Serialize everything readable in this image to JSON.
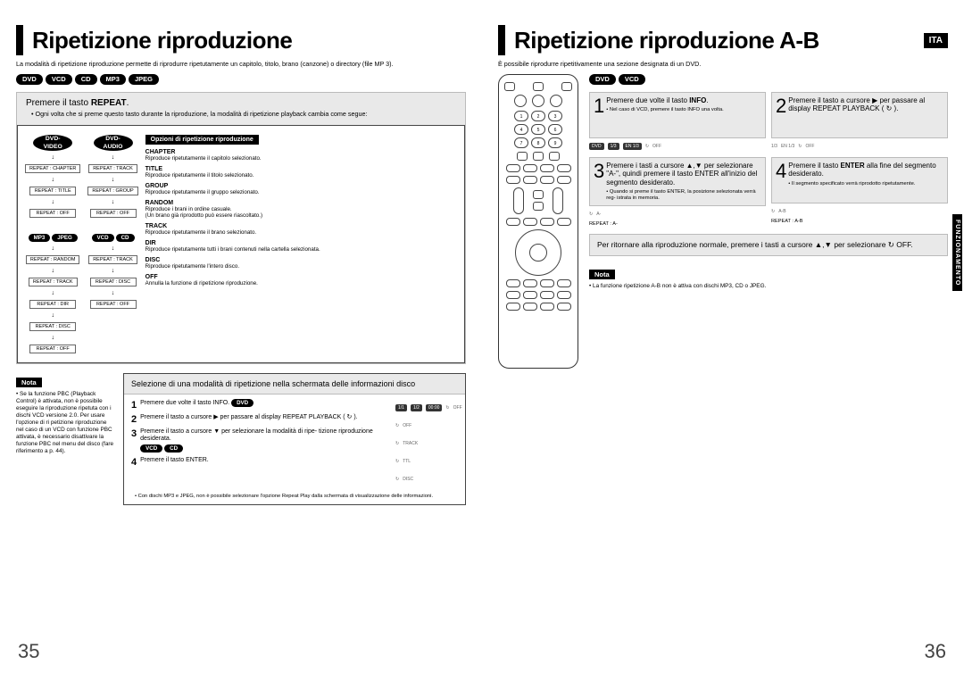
{
  "left": {
    "title": "Ripetizione riproduzione",
    "subtitle": "La modalità di ripetizione riproduzione permette di riprodurre ripetutamente un capitolo, titolo, brano (canzone) o directory (file MP 3).",
    "formats": [
      "DVD",
      "VCD",
      "CD",
      "MP3",
      "JPEG"
    ],
    "grayHeader": "Premere il tasto REPEAT.",
    "grayNote": "• Ogni volta che si preme questo tasto durante la riproduzione, la modalità di ripetizione playback cambia come segue:",
    "cols": {
      "dvdVideo": {
        "label": "DVD-\nVIDEO",
        "nodes": [
          "REPEAT : CHAPTER",
          "REPEAT : TITLE",
          "REPEAT : OFF"
        ]
      },
      "dvdAudio": {
        "label": "DVD-\nAUDIO",
        "nodes": [
          "REPEAT : TRACK",
          "REPEAT : GROUP",
          "REPEAT : OFF"
        ]
      },
      "mp3jpeg": {
        "labels": [
          "MP3",
          "JPEG"
        ],
        "nodes": [
          "REPEAT : RANDOM",
          "REPEAT : TRACK",
          "REPEAT : DIR",
          "REPEAT : DISC",
          "REPEAT : OFF"
        ]
      },
      "vcdcd": {
        "labels": [
          "VCD",
          "CD"
        ],
        "nodes": [
          "REPEAT : TRACK",
          "REPEAT : DISC",
          "REPEAT : OFF"
        ]
      }
    },
    "optHeader": "Opzioni di ripetizione riproduzione",
    "options": [
      {
        "nm": "CHAPTER",
        "ds": "Riproduce ripetutamente il capitolo selezionato."
      },
      {
        "nm": "TITLE",
        "ds": "Riproduce ripetutamente il titolo selezionato."
      },
      {
        "nm": "GROUP",
        "ds": "Riproduce ripetutamente il gruppo selezionato."
      },
      {
        "nm": "RANDOM",
        "ds": "Riproduce i brani in ordine casuale.\n(Un brano già riprodotto può essere riascoltato.)"
      },
      {
        "nm": "TRACK",
        "ds": "Riproduce ripetutamente il brano selezionato."
      },
      {
        "nm": "DIR",
        "ds": "Riproduce ripetutamente tutti i brani contenuti nella cartella selezionata."
      },
      {
        "nm": "DISC",
        "ds": "Riproduce ripetutamente l'intero disco."
      },
      {
        "nm": "OFF",
        "ds": "Annulla la funzione di ripetizione riproduzione."
      }
    ],
    "nota": "Nota",
    "notaText": "• Se la funzione PBC (Playback Control) è attivata, non è possibile eseguire la riproduzione ripetuta con i dischi VCD versione 2.0. Per usare l'opzione di ri petizione riproduzione nel caso di un VCD con funzione PBC attivata, è necessario disattivare la funzione PBC nel menu del disco (fare riferimento a p. 44).",
    "infoHeader": "Selezione di una modalità di ripetizione nella schermata delle informazioni disco",
    "steps": [
      {
        "n": "1",
        "t": "Premere due volte il tasto INFO."
      },
      {
        "n": "2",
        "t": "Premere il tasto a cursore ▶ per passare al display REPEAT PLAYBACK ( ↻ )."
      },
      {
        "n": "3",
        "t": "Premere il tasto a cursore ▼ per selezionare la modalità di ripe- tizione riproduzione desiderata."
      },
      {
        "n": "4",
        "t": "Premere il tasto ENTER."
      }
    ],
    "dvdBadge": "DVD",
    "vcdcdBadges": [
      "VCD",
      "CD"
    ],
    "stripLabels": [
      "1/1",
      "1/2",
      "00:00",
      "OFF",
      "TRACK",
      "DISC",
      "TTL"
    ],
    "tinyNote": "• Con dischi MP3 e JPEG, non è possibile selezionare l'opzione Repeat Play dalla schermata di visualizzazione delle informazioni.",
    "pageNum": "35"
  },
  "right": {
    "title": "Ripetizione riproduzione A-B",
    "lang": "ITA",
    "subtitle": "È possibile riprodurre ripetitivamente una sezione designata di un DVD.",
    "formats": [
      "DVD",
      "VCD"
    ],
    "q1": {
      "n": "1",
      "t": "Premere due volte il tasto INFO.",
      "sub": "• Nel caso di VCD, premere il tasto INFO una volta."
    },
    "q2": {
      "n": "2",
      "t": "Premere il tasto a cursore ▶ per passare al display REPEAT PLAYBACK ( ↻ )."
    },
    "q3": {
      "n": "3",
      "t": "Premere i tasti a cursore ▲,▼ per selezionare \"A-\", quindi premere il tasto ENTER all'inizio del segmento desiderato.",
      "sub": "• Quando si preme il tasto ENTER, la posizione selezionata verrà reg- istrata in memoria."
    },
    "q4": {
      "n": "4",
      "t": "Premere il tasto ENTER alla fine del segmento desiderato.",
      "sub": "• Il segmento specificato verrà riprodotto ripetutamente."
    },
    "stripA": "REPEAT : A-",
    "stripAB": "REPEAT : A-B",
    "returnText": "Per ritornare alla riproduzione normale, premere i tasti a cursore ▲,▼ per selezionare ↻ OFF.",
    "nota": "Nota",
    "notaText": "• La funzione ripetizione A-B non è attiva con dischi MP3, CD o JPEG.",
    "sideTab": "FUNZIONAMENTO",
    "pageNum": "36"
  },
  "colors": {
    "bg": "#ffffff",
    "gray": "#e9e9e9",
    "border": "#bbbbbb",
    "border_dark": "#444444",
    "text": "#000000"
  }
}
